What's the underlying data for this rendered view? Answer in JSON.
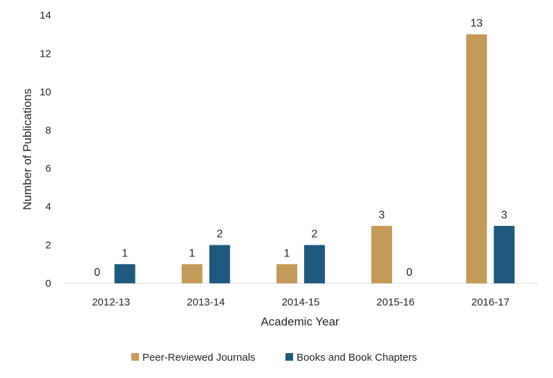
{
  "chart_data": {
    "type": "bar",
    "title": "",
    "xlabel": "Academic Year",
    "ylabel": "Number of Publications",
    "categories": [
      "2012-13",
      "2013-14",
      "2014-15",
      "2015-16",
      "2016-17"
    ],
    "series": [
      {
        "name": "Peer-Reviewed Journals",
        "values": [
          0,
          1,
          1,
          3,
          13
        ],
        "color": "#C49A5A"
      },
      {
        "name": "Books and Book Chapters",
        "values": [
          1,
          2,
          2,
          0,
          3
        ],
        "color": "#1F5A7E"
      }
    ],
    "ylim": [
      0,
      14
    ],
    "yticks": [
      0,
      2,
      4,
      6,
      8,
      10,
      12,
      14
    ],
    "grid": false,
    "data_labels": true,
    "legend_position": "bottom"
  }
}
